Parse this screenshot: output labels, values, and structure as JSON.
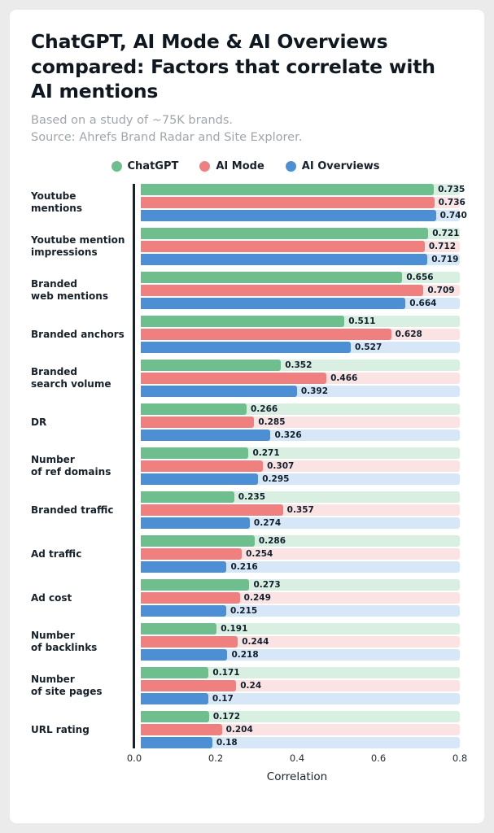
{
  "header": {
    "title": "ChatGPT, AI Mode & AI Overviews compared: Factors that correlate with AI mentions",
    "subtitle": "Based on a study of ~75K brands.\nSource: Ahrefs Brand Radar and Site Explorer."
  },
  "chart_data": {
    "type": "bar",
    "orientation": "horizontal",
    "xlabel": "Correlation",
    "xlim": [
      0,
      0.8
    ],
    "xticks": [
      "0.0",
      "0.2",
      "0.4",
      "0.6",
      "0.8"
    ],
    "categories": [
      "Youtube\nmentions",
      "Youtube mention\nimpressions",
      "Branded\nweb mentions",
      "Branded anchors",
      "Branded\nsearch volume",
      "DR",
      "Number\nof ref domains",
      "Branded traffic",
      "Ad traffic",
      "Ad cost",
      "Number\nof backlinks",
      "Number\nof site pages",
      "URL rating"
    ],
    "series": [
      {
        "name": "ChatGPT",
        "color": "#6fbe8e",
        "track_color": "#d9efe2",
        "values": [
          0.735,
          0.721,
          0.656,
          0.511,
          0.352,
          0.266,
          0.271,
          0.235,
          0.286,
          0.273,
          0.191,
          0.171,
          0.172
        ],
        "labels": [
          "0.735",
          "0.721",
          "0.656",
          "0.511",
          "0.352",
          "0.266",
          "0.271",
          "0.235",
          "0.286",
          "0.273",
          "0.191",
          "0.171",
          "0.172"
        ]
      },
      {
        "name": "AI Mode",
        "color": "#f07f80",
        "track_color": "#fce3e3",
        "values": [
          0.736,
          0.712,
          0.709,
          0.628,
          0.466,
          0.285,
          0.307,
          0.357,
          0.254,
          0.249,
          0.244,
          0.24,
          0.204
        ],
        "labels": [
          "0.736",
          "0.712",
          "0.709",
          "0.628",
          "0.466",
          "0.285",
          "0.307",
          "0.357",
          "0.254",
          "0.249",
          "0.244",
          "0.24",
          "0.204"
        ]
      },
      {
        "name": "AI Overviews",
        "color": "#4d8fd5",
        "track_color": "#d8e7f7",
        "values": [
          0.74,
          0.719,
          0.664,
          0.527,
          0.392,
          0.326,
          0.295,
          0.274,
          0.216,
          0.215,
          0.218,
          0.17,
          0.18
        ],
        "labels": [
          "0.740",
          "0.719",
          "0.664",
          "0.527",
          "0.392",
          "0.326",
          "0.295",
          "0.274",
          "0.216",
          "0.215",
          "0.218",
          "0.17",
          "0.18"
        ]
      }
    ]
  }
}
